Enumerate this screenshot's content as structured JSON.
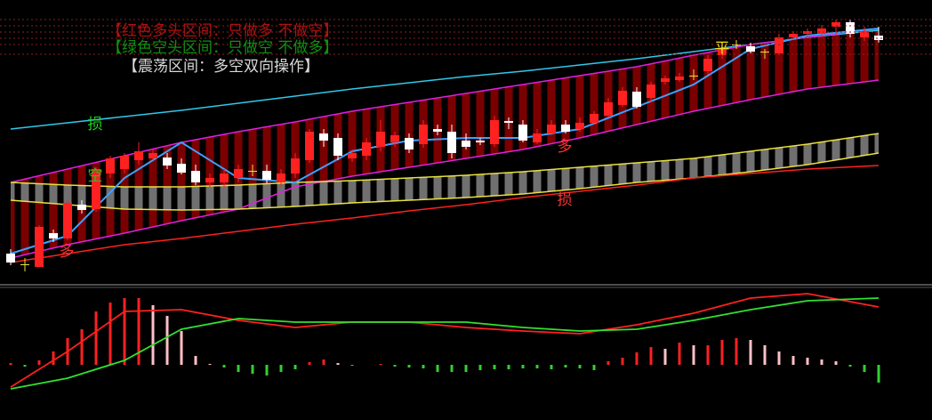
{
  "chart_data": [
    {
      "type": "candlestick",
      "notes": [
        "【红色多头区间：只做多 不做空】",
        "【绿色空头区间：只做空 不做多】",
        "【震荡区间：多空双向操作】"
      ],
      "annotations": [
        "损",
        "空",
        "多",
        "多",
        "损",
        "平"
      ],
      "xlim": [
        0,
        61
      ],
      "ylim": [
        0,
        320
      ],
      "up_color": "#ff2020",
      "down_color": "#ffffff",
      "doji_color": "#e8e040",
      "open": [
        35,
        23,
        20,
        58,
        52,
        90,
        85,
        125,
        130,
        140,
        142,
        143,
        136,
        128,
        115,
        115,
        120,
        128,
        128,
        115,
        125,
        140,
        170,
        165,
        142,
        145,
        155,
        160,
        165,
        158,
        175,
        172,
        162,
        162,
        158,
        184,
        180,
        160,
        170,
        180,
        175,
        182,
        190,
        202,
        217,
        210,
        228,
        230,
        235,
        240,
        258,
        270,
        268,
        262,
        260,
        278,
        282,
        282,
        290,
        295,
        278,
        280
      ],
      "high": [
        40,
        30,
        67,
        62,
        95,
        95,
        132,
        145,
        148,
        160,
        152,
        148,
        142,
        135,
        125,
        130,
        135,
        135,
        135,
        130,
        148,
        175,
        175,
        170,
        152,
        165,
        185,
        172,
        170,
        185,
        180,
        180,
        170,
        165,
        190,
        188,
        185,
        175,
        185,
        185,
        188,
        195,
        210,
        222,
        222,
        228,
        235,
        238,
        242,
        258,
        270,
        275,
        272,
        265,
        282,
        285,
        288,
        292,
        298,
        298,
        290,
        290
      ],
      "low": [
        22,
        15,
        20,
        48,
        50,
        80,
        82,
        120,
        125,
        135,
        140,
        130,
        124,
        112,
        110,
        110,
        115,
        122,
        114,
        110,
        120,
        137,
        155,
        140,
        138,
        140,
        150,
        155,
        148,
        154,
        168,
        142,
        152,
        157,
        155,
        175,
        160,
        158,
        168,
        170,
        172,
        180,
        188,
        200,
        198,
        205,
        225,
        228,
        230,
        236,
        254,
        265,
        260,
        254,
        258,
        275,
        278,
        278,
        280,
        278,
        274,
        272
      ],
      "close": [
        25,
        23,
        65,
        52,
        92,
        84,
        130,
        142,
        145,
        150,
        148,
        134,
        126,
        115,
        120,
        125,
        130,
        128,
        118,
        125,
        142,
        172,
        162,
        145,
        148,
        160,
        172,
        168,
        152,
        180,
        172,
        148,
        155,
        160,
        185,
        182,
        162,
        170,
        180,
        172,
        182,
        192,
        205,
        218,
        200,
        225,
        232,
        234,
        235,
        254,
        265,
        270,
        262,
        262,
        278,
        282,
        285,
        288,
        295,
        282,
        285,
        275
      ],
      "line_x": [
        0,
        4,
        8,
        12,
        16,
        20,
        24,
        28,
        32,
        36,
        40,
        44,
        48,
        52,
        56,
        61
      ],
      "series": [
        {
          "color": "#30c8e8",
          "values": [
            175,
            182,
            189,
            196,
            204,
            212,
            220,
            227,
            234,
            240,
            247,
            254,
            262,
            270,
            278,
            286
          ]
        },
        {
          "color": "#e020e0",
          "fill": "#7a0000",
          "values": [
            115,
            130,
            145,
            160,
            172,
            183,
            195,
            205,
            215,
            225,
            235,
            245,
            258,
            270,
            278,
            288
          ]
        },
        {
          "color": "#e020e0",
          "values": [
            30,
            45,
            58,
            72,
            85,
            110,
            122,
            132,
            142,
            152,
            165,
            180,
            195,
            208,
            220,
            230
          ]
        },
        {
          "color": "#e8e040",
          "fill": "#707070",
          "values": [
            115,
            112,
            110,
            110,
            112,
            115,
            117,
            120,
            123,
            127,
            132,
            137,
            142,
            150,
            158,
            170
          ]
        },
        {
          "color": "#e8e040",
          "values": [
            95,
            90,
            85,
            84,
            85,
            88,
            92,
            95,
            98,
            102,
            108,
            115,
            120,
            127,
            135,
            148
          ]
        },
        {
          "color": "#ff2020",
          "values": [
            25,
            35,
            45,
            52,
            60,
            68,
            75,
            83,
            90,
            98,
            105,
            112,
            120,
            125,
            130,
            134
          ]
        },
        {
          "color": "#3fa0ff",
          "values": [
            35,
            55,
            120,
            160,
            120,
            115,
            150,
            162,
            165,
            165,
            175,
            200,
            225,
            265,
            280,
            288
          ]
        }
      ]
    },
    {
      "type": "bar",
      "xlim": [
        0,
        61
      ],
      "ylim": [
        -62,
        85
      ],
      "up_color": "#ff2020",
      "fade_color": "#ffc0c8",
      "down_color": "#30d030",
      "values": [
        2,
        -2,
        5,
        15,
        30,
        40,
        60,
        70,
        75,
        75,
        67,
        55,
        38,
        10,
        1,
        -3,
        -8,
        -10,
        -12,
        -8,
        -5,
        3,
        6,
        2,
        -1,
        0,
        1,
        -2,
        -3,
        -4,
        -8,
        -8,
        -8,
        -6,
        -5,
        -5,
        -4,
        -4,
        -5,
        -3,
        -4,
        -6,
        4,
        8,
        14,
        20,
        18,
        25,
        22,
        22,
        28,
        30,
        28,
        22,
        15,
        10,
        8,
        6,
        4,
        -2,
        -8,
        -20
      ],
      "line_x": [
        0,
        4,
        8,
        12,
        16,
        20,
        24,
        28,
        32,
        36,
        40,
        44,
        48,
        52,
        56,
        61
      ],
      "series": [
        {
          "color": "#ff2020",
          "values": [
            -25,
            15,
            60,
            62,
            50,
            42,
            48,
            48,
            42,
            38,
            35,
            45,
            58,
            75,
            80,
            65
          ]
        },
        {
          "color": "#30e030",
          "values": [
            -27,
            -15,
            5,
            40,
            52,
            48,
            48,
            48,
            48,
            42,
            38,
            40,
            50,
            62,
            72,
            75
          ]
        }
      ]
    }
  ]
}
